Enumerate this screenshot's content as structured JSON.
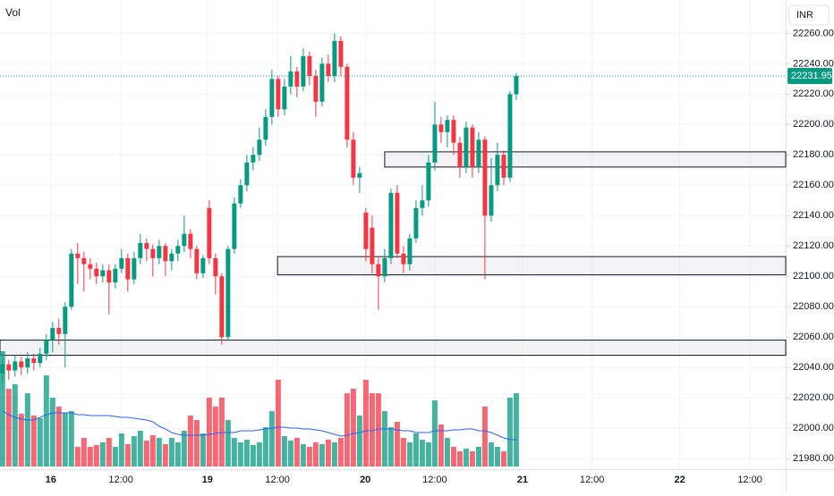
{
  "chart_data": {
    "type": "candlestick",
    "volume_label": "Vol",
    "price_axis_label": "INR",
    "up_color": "#089981",
    "down_color": "#f23645",
    "ma_color": "#2962ff",
    "grid": true,
    "ylim": [
      21973,
      22282
    ],
    "yticks": [
      {
        "value": 21980,
        "label": "21980.00"
      },
      {
        "value": 22000,
        "label": "22000.00"
      },
      {
        "value": 22020,
        "label": "22020.00"
      },
      {
        "value": 22040,
        "label": "22040.00"
      },
      {
        "value": 22060,
        "label": "22060.00"
      },
      {
        "value": 22080,
        "label": "22080.00"
      },
      {
        "value": 22100,
        "label": "22100.00"
      },
      {
        "value": 22120,
        "label": "22120.00"
      },
      {
        "value": 22140,
        "label": "22140.00"
      },
      {
        "value": 22160,
        "label": "22160.00"
      },
      {
        "value": 22180,
        "label": "22180.00"
      },
      {
        "value": 22200,
        "label": "22200.00"
      },
      {
        "value": 22220,
        "label": "22220.00"
      },
      {
        "value": 22240,
        "label": "22240.00"
      },
      {
        "value": 22260,
        "label": "22260.00"
      }
    ],
    "xlim": [
      -0.4,
      125
    ],
    "xticks": [
      {
        "value": 7.7,
        "label": "16"
      },
      {
        "value": 18.9,
        "label": "12:00"
      },
      {
        "value": 32.7,
        "label": "19"
      },
      {
        "value": 43.9,
        "label": "12:00"
      },
      {
        "value": 57.9,
        "label": "20"
      },
      {
        "value": 69,
        "label": "12:00"
      },
      {
        "value": 83,
        "label": "21"
      },
      {
        "value": 94.1,
        "label": "12:00"
      },
      {
        "value": 108.1,
        "label": "22"
      },
      {
        "value": 119.3,
        "label": "12:00"
      }
    ],
    "last_price": 22231.95,
    "zones": [
      {
        "top": 22182,
        "bottom": 22172,
        "start": 61
      },
      {
        "top": 22113,
        "bottom": 22101,
        "start": 43.9
      },
      {
        "top": 22058,
        "bottom": 22048,
        "start": -0.4
      }
    ],
    "open": [
      22036,
      22042,
      22038,
      22044,
      22040,
      22046,
      22043,
      22049,
      22058,
      22066,
      22062,
      22080,
      22115,
      22112,
      22108,
      22105,
      22100,
      22104,
      22096,
      22105,
      22112,
      22098,
      22112,
      22122,
      22118,
      22112,
      22120,
      22110,
      22115,
      22120,
      22128,
      22118,
      22102,
      22145,
      22112,
      22100,
      22060,
      22118,
      22148,
      22160,
      22175,
      22180,
      22190,
      22205,
      22230,
      22210,
      22225,
      22235,
      22225,
      22245,
      22232,
      22215,
      22240,
      22232,
      22255,
      22238,
      22190,
      22165,
      22142,
      22132,
      22108,
      22100,
      22112,
      22155,
      22115,
      22108,
      22125,
      22145,
      22150,
      22175,
      22200,
      22195,
      22203,
      22188,
      22172,
      22198,
      22172,
      22190,
      22140,
      22160,
      22180,
      22165,
      22220
    ],
    "high": [
      22046,
      22045,
      22048,
      22047,
      22050,
      22049,
      22053,
      22062,
      22070,
      22072,
      22083,
      22118,
      22122,
      22116,
      22112,
      22109,
      22108,
      22108,
      22108,
      22118,
      22115,
      22116,
      22128,
      22125,
      22121,
      22124,
      22122,
      22118,
      22124,
      22140,
      22131,
      22120,
      22114,
      22150,
      22115,
      22102,
      22120,
      22152,
      22164,
      22180,
      22185,
      22198,
      22210,
      22236,
      22232,
      22230,
      22245,
      22238,
      22250,
      22248,
      22236,
      22244,
      22246,
      22260,
      22258,
      22240,
      22195,
      22172,
      22145,
      22140,
      22112,
      22118,
      22158,
      22160,
      22120,
      22128,
      22150,
      22160,
      22180,
      22215,
      22205,
      22206,
      22206,
      22192,
      22202,
      22200,
      22195,
      22192,
      22178,
      22188,
      22183,
      22222,
      22234
    ],
    "low": [
      22030,
      22032,
      22034,
      22035,
      22036,
      22038,
      22040,
      22045,
      22050,
      22055,
      22040,
      22078,
      22095,
      22090,
      22098,
      22095,
      22096,
      22075,
      22092,
      22102,
      22090,
      22095,
      22108,
      22110,
      22100,
      22108,
      22100,
      22104,
      22110,
      22116,
      22112,
      22098,
      22099,
      22108,
      22088,
      22055,
      22058,
      22115,
      22145,
      22156,
      22170,
      22176,
      22186,
      22200,
      22205,
      22206,
      22220,
      22218,
      22222,
      22226,
      22205,
      22212,
      22228,
      22228,
      22232,
      22185,
      22160,
      22155,
      22110,
      22102,
      22078,
      22096,
      22108,
      22112,
      22102,
      22104,
      22122,
      22140,
      22146,
      22170,
      22188,
      22185,
      22180,
      22165,
      22168,
      22165,
      22168,
      22098,
      22136,
      22156,
      22160,
      22162,
      22216
    ],
    "close": [
      22042,
      22038,
      22044,
      22040,
      22046,
      22043,
      22049,
      22058,
      22066,
      22062,
      22080,
      22115,
      22112,
      22108,
      22105,
      22100,
      22104,
      22096,
      22105,
      22112,
      22098,
      22112,
      22122,
      22118,
      22112,
      22120,
      22110,
      22115,
      22120,
      22128,
      22118,
      22102,
      22112,
      22112,
      22100,
      22060,
      22118,
      22148,
      22160,
      22175,
      22180,
      22190,
      22205,
      22230,
      22210,
      22225,
      22235,
      22225,
      22245,
      22232,
      22215,
      22240,
      22232,
      22255,
      22238,
      22190,
      22165,
      22168,
      22118,
      22108,
      22100,
      22112,
      22155,
      22115,
      22108,
      22125,
      22145,
      22150,
      22175,
      22200,
      22195,
      22203,
      22188,
      22172,
      22198,
      22172,
      22190,
      22140,
      22160,
      22180,
      22165,
      22220,
      22231.95
    ],
    "volume": [
      129,
      87,
      92,
      59,
      82,
      57,
      54,
      102,
      77,
      67,
      60,
      62,
      22,
      32,
      22,
      24,
      27,
      32,
      22,
      37,
      25,
      34,
      40,
      29,
      35,
      32,
      25,
      32,
      27,
      40,
      57,
      52,
      37,
      77,
      67,
      77,
      52,
      32,
      27,
      30,
      24,
      27,
      44,
      62,
      97,
      34,
      29,
      32,
      25,
      22,
      27,
      25,
      30,
      27,
      32,
      82,
      87,
      57,
      97,
      82,
      82,
      62,
      44,
      50,
      32,
      27,
      37,
      30,
      27,
      74,
      47,
      32,
      22,
      17,
      20,
      17,
      22,
      67,
      27,
      22,
      17,
      77,
      82
    ],
    "volume_ma": [
      62,
      58,
      55,
      53,
      52,
      52,
      55,
      58,
      60,
      60,
      60,
      60,
      58,
      58,
      57,
      57,
      57,
      57,
      56,
      55,
      55,
      54,
      53,
      52,
      50,
      45,
      42,
      38,
      36,
      35,
      35,
      35,
      35,
      36,
      37,
      38,
      38,
      38,
      40,
      40,
      40,
      41,
      42,
      43,
      44,
      44,
      43,
      43,
      42,
      42,
      41,
      40,
      38,
      36,
      34,
      35,
      37,
      38,
      40,
      40,
      42,
      42,
      42,
      41,
      40,
      40,
      38,
      38,
      38,
      40,
      40,
      40,
      41,
      41,
      42,
      42,
      40,
      40,
      38,
      35,
      32,
      30,
      30
    ]
  }
}
